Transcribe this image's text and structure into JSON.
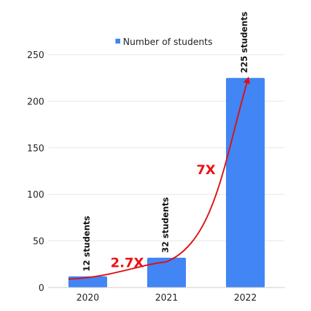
{
  "chart_data": {
    "type": "bar",
    "categories": [
      "2020",
      "2021",
      "2022"
    ],
    "series": [
      {
        "name": "Number of students",
        "values": [
          12,
          32,
          225
        ]
      }
    ],
    "data_labels": [
      "12 students",
      "32 students",
      "225 students"
    ],
    "ylim": [
      0,
      250
    ],
    "yticks": [
      0,
      50,
      100,
      150,
      200,
      250
    ],
    "grid": true,
    "legend": "top-center",
    "annotations": [
      {
        "text": "2.7X",
        "color": "#ee1111"
      },
      {
        "text": "7X",
        "color": "#ee1111"
      }
    ],
    "trend_arrow": {
      "color": "#dd1111"
    },
    "colors": {
      "bar": "#4285f4",
      "grid": "#e6e6e6",
      "axis": "#cccccc"
    }
  }
}
